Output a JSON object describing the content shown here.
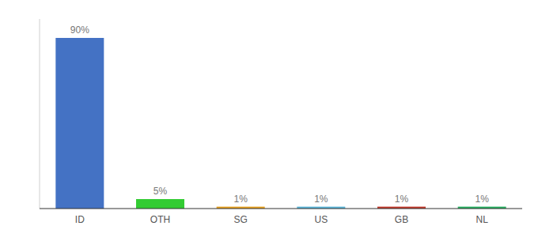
{
  "chart_data": {
    "type": "bar",
    "categories": [
      "ID",
      "OTH",
      "SG",
      "US",
      "GB",
      "NL"
    ],
    "values": [
      90,
      5,
      1,
      1,
      1,
      1
    ],
    "value_labels": [
      "90%",
      "5%",
      "1%",
      "1%",
      "1%",
      "1%"
    ],
    "colors": [
      "#4472c4",
      "#33cc33",
      "#e6a020",
      "#5ab4d6",
      "#c0392b",
      "#27ae60"
    ],
    "ylim": [
      0,
      100
    ],
    "data_labels": true,
    "tick_labels": "x",
    "grid": false
  }
}
